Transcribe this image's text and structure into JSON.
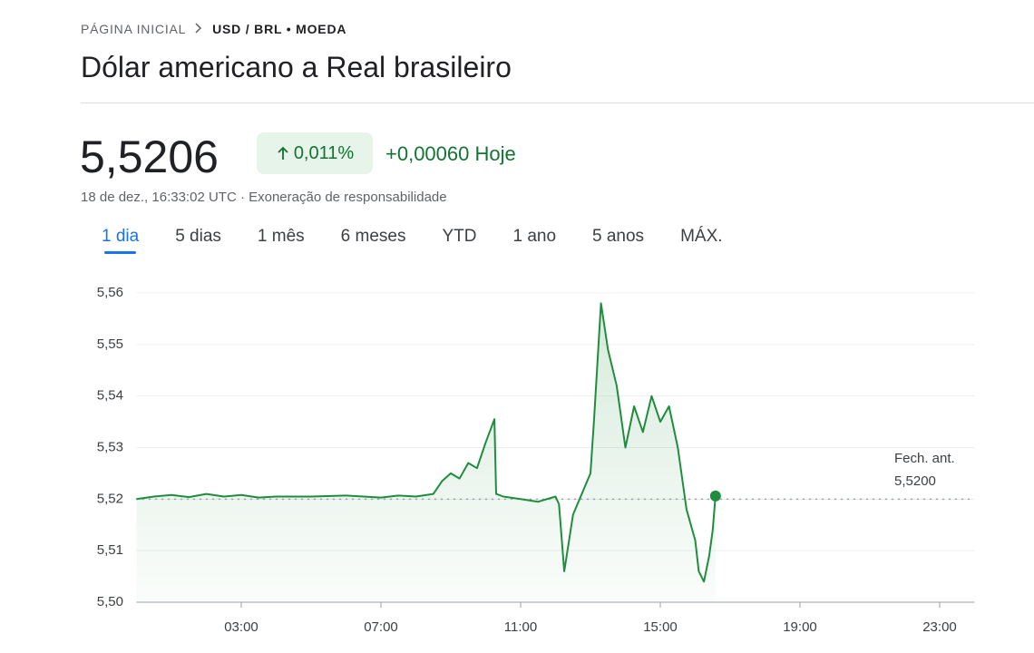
{
  "breadcrumb": {
    "home": "PÁGINA INICIAL",
    "current": "USD / BRL • MOEDA"
  },
  "title": "Dólar americano a Real brasileiro",
  "price": "5,5206",
  "change_percent": "0,011%",
  "change_today": "+0,00060 Hoje",
  "timestamp": "18 de dez., 16:33:02 UTC · Exoneração de responsabilidade",
  "tabs": [
    "1 dia",
    "5 dias",
    "1 mês",
    "6 meses",
    "YTD",
    "1 ano",
    "5 anos",
    "MÁX."
  ],
  "active_tab": 0,
  "chart_data": {
    "type": "line",
    "series": [
      {
        "color": "#1e8e3e",
        "x": [
          0,
          0.5,
          1,
          1.5,
          2,
          2.5,
          3,
          3.5,
          4,
          5,
          6,
          7,
          7.5,
          8,
          8.5,
          8.75,
          9,
          9.25,
          9.5,
          9.75,
          10,
          10.25,
          10.3,
          10.5,
          11,
          11.5,
          12,
          12.1,
          12.25,
          12.5,
          12.75,
          13,
          13.1,
          13.3,
          13.5,
          13.75,
          14,
          14.25,
          14.5,
          14.75,
          15,
          15.25,
          15.5,
          15.75,
          16,
          16.1,
          16.25,
          16.4,
          16.5,
          16.58
        ],
        "values": [
          5.52,
          5.5205,
          5.5208,
          5.5204,
          5.521,
          5.5205,
          5.5208,
          5.5203,
          5.5205,
          5.5205,
          5.5207,
          5.5203,
          5.5207,
          5.5205,
          5.521,
          5.5235,
          5.525,
          5.524,
          5.527,
          5.526,
          5.531,
          5.5355,
          5.521,
          5.5205,
          5.52,
          5.5195,
          5.5205,
          5.519,
          5.506,
          5.517,
          5.521,
          5.525,
          5.535,
          5.558,
          5.549,
          5.542,
          5.53,
          5.538,
          5.533,
          5.54,
          5.535,
          5.538,
          5.53,
          5.518,
          5.512,
          5.506,
          5.504,
          5.509,
          5.514,
          5.5206
        ]
      }
    ],
    "xlim": [
      0,
      24
    ],
    "xticks": [
      {
        "value": 3,
        "label": "03:00"
      },
      {
        "value": 7,
        "label": "07:00"
      },
      {
        "value": 11,
        "label": "11:00"
      },
      {
        "value": 15,
        "label": "15:00"
      },
      {
        "value": 19,
        "label": "19:00"
      },
      {
        "value": 23,
        "label": "23:00"
      }
    ],
    "ylim": [
      5.5,
      5.56
    ],
    "yticks": [
      {
        "value": 5.5,
        "label": "5,50"
      },
      {
        "value": 5.51,
        "label": "5,51"
      },
      {
        "value": 5.52,
        "label": "5,52"
      },
      {
        "value": 5.53,
        "label": "5,53"
      },
      {
        "value": 5.54,
        "label": "5,54"
      },
      {
        "value": 5.55,
        "label": "5,55"
      },
      {
        "value": 5.56,
        "label": "5,56"
      }
    ],
    "grid": true,
    "previous_close_label": "Fech. ant.",
    "previous_close": {
      "value": 5.52,
      "label": "5,5200"
    }
  }
}
